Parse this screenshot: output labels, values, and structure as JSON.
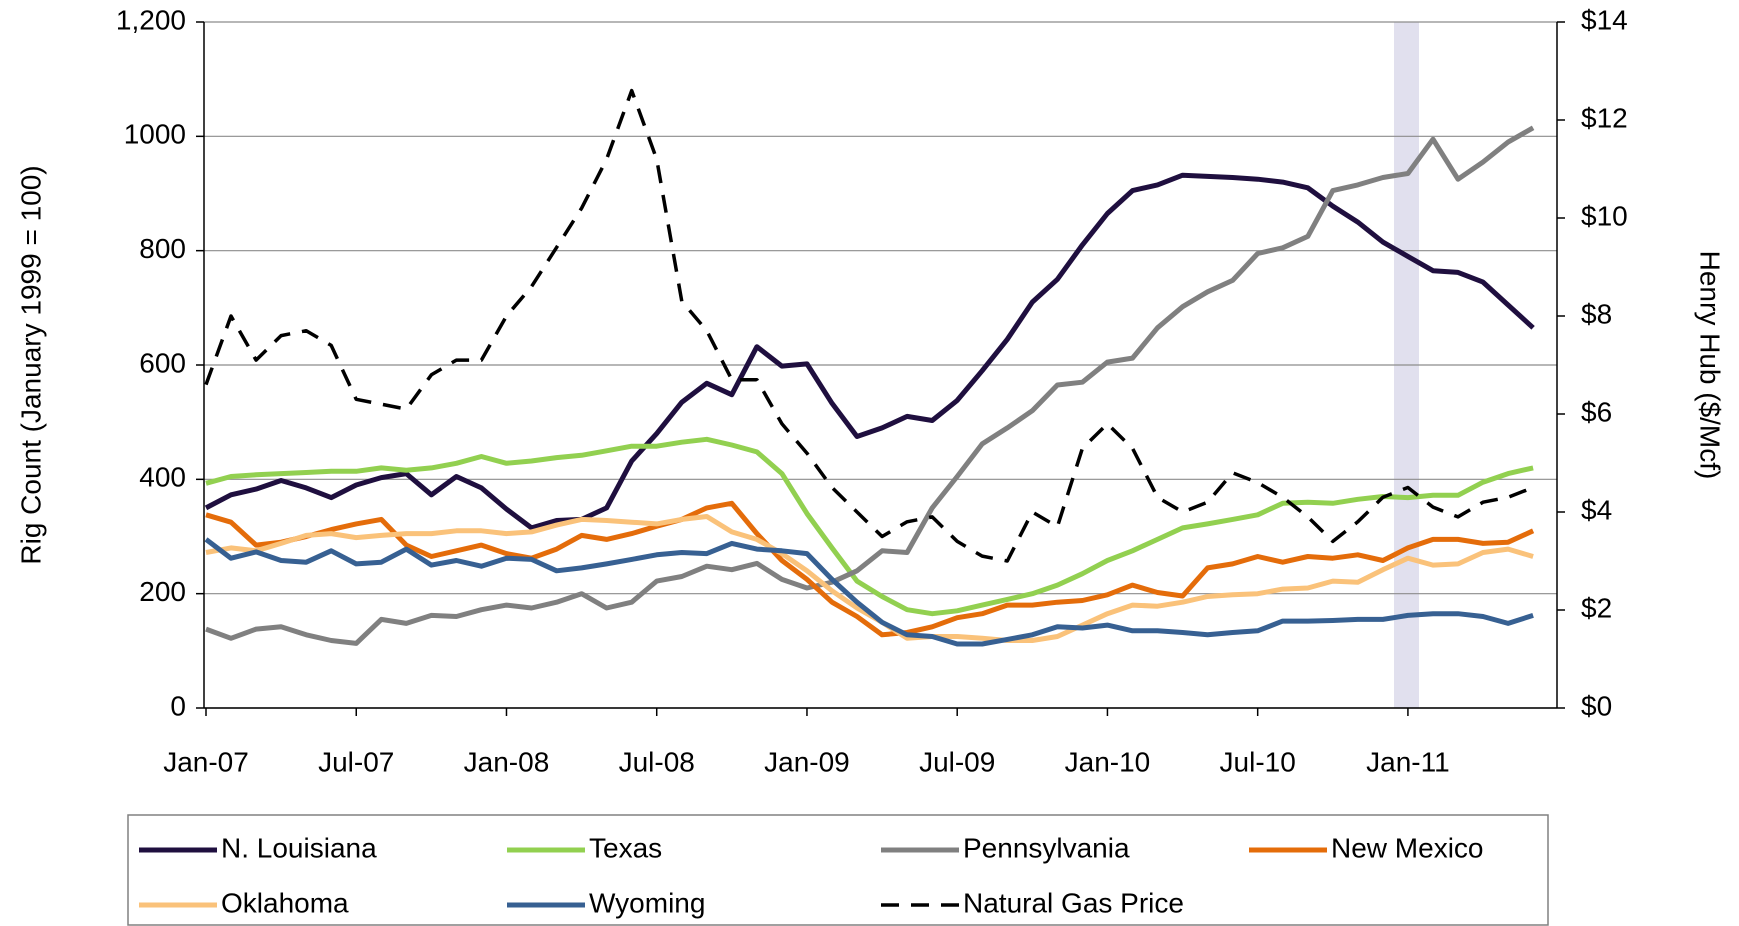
{
  "chart_data": {
    "type": "line",
    "categories": [
      "Jan-07",
      null,
      null,
      null,
      null,
      null,
      "Jul-07",
      null,
      null,
      null,
      null,
      null,
      "Jan-08",
      null,
      null,
      null,
      null,
      null,
      "Jul-08",
      null,
      null,
      null,
      null,
      null,
      "Jan-09",
      null,
      null,
      null,
      null,
      null,
      "Jul-09",
      null,
      null,
      null,
      null,
      null,
      "Jan-10",
      null,
      null,
      null,
      null,
      null,
      "Jul-10",
      null,
      null,
      null,
      null,
      null,
      "Jan-11",
      null,
      null,
      null,
      null,
      null
    ],
    "ylabel": "Rig Count (January 1999 = 100)",
    "y2label": "Henry Hub ($/Mcf)",
    "ylim": [
      0,
      1200
    ],
    "yticks": [
      0,
      200,
      400,
      600,
      800,
      1000,
      {
        "value": 1200,
        "label": "1,200"
      }
    ],
    "y2lim": [
      0,
      14
    ],
    "y2ticks": [
      {
        "value": 0,
        "label": "$0"
      },
      {
        "value": 2,
        "label": "$2"
      },
      {
        "value": 4,
        "label": "$4"
      },
      {
        "value": 6,
        "label": "$6"
      },
      {
        "value": 8,
        "label": "$8"
      },
      {
        "value": 10,
        "label": "$10"
      },
      {
        "value": 12,
        "label": "$12"
      },
      {
        "value": 14,
        "label": "$14"
      }
    ],
    "grid": true,
    "legend": "bottom",
    "series": [
      {
        "name": "N. Louisiana",
        "color": "#1f0f3f",
        "values": [
          350,
          373,
          383,
          398,
          385,
          368,
          390,
          403,
          410,
          373,
          405,
          385,
          348,
          315,
          328,
          330,
          350,
          432,
          480,
          535,
          568,
          548,
          632,
          598,
          602,
          533,
          475,
          490,
          510,
          503,
          538,
          590,
          645,
          710,
          750,
          810,
          865,
          905,
          915,
          932,
          930,
          928,
          925,
          920,
          910,
          878,
          850,
          815,
          790,
          765,
          762,
          745,
          705,
          665
        ]
      },
      {
        "name": "Texas",
        "color": "#92d050",
        "values": [
          393,
          405,
          408,
          410,
          412,
          414,
          414,
          420,
          416,
          420,
          428,
          440,
          428,
          432,
          438,
          442,
          450,
          458,
          458,
          465,
          470,
          460,
          448,
          410,
          340,
          280,
          222,
          195,
          172,
          165,
          170,
          180,
          190,
          200,
          215,
          235,
          258,
          275,
          295,
          315,
          322,
          330,
          338,
          358,
          360,
          358,
          365,
          370,
          368,
          372,
          372,
          395,
          410,
          420
        ]
      },
      {
        "name": "Pennsylvania",
        "color": "#808080",
        "values": [
          138,
          122,
          138,
          142,
          128,
          118,
          113,
          155,
          148,
          162,
          160,
          172,
          180,
          175,
          185,
          200,
          175,
          185,
          222,
          230,
          248,
          242,
          253,
          225,
          210,
          220,
          240,
          275,
          272,
          350,
          405,
          462,
          490,
          520,
          565,
          570,
          605,
          612,
          665,
          702,
          728,
          748,
          795,
          805,
          825,
          905,
          915,
          928,
          935,
          995,
          925,
          955,
          990,
          1015
        ]
      },
      {
        "name": "New Mexico",
        "color": "#e46c0a",
        "values": [
          338,
          325,
          285,
          290,
          300,
          312,
          322,
          330,
          285,
          265,
          275,
          285,
          270,
          262,
          278,
          302,
          295,
          305,
          318,
          330,
          350,
          358,
          305,
          258,
          225,
          185,
          160,
          128,
          132,
          142,
          158,
          165,
          180,
          180,
          185,
          188,
          198,
          215,
          202,
          196,
          245,
          252,
          265,
          255,
          265,
          262,
          268,
          258,
          280,
          295,
          295,
          288,
          290,
          310
        ]
      },
      {
        "name": "Oklahoma",
        "color": "#fac27a",
        "values": [
          272,
          280,
          275,
          288,
          302,
          305,
          298,
          302,
          305,
          305,
          310,
          310,
          305,
          308,
          320,
          330,
          328,
          325,
          322,
          330,
          335,
          308,
          295,
          270,
          240,
          205,
          175,
          150,
          122,
          125,
          125,
          122,
          118,
          118,
          125,
          145,
          165,
          180,
          178,
          185,
          195,
          198,
          200,
          208,
          210,
          222,
          220,
          242,
          262,
          250,
          252,
          272,
          278,
          265
        ]
      },
      {
        "name": "Wyoming",
        "color": "#376092",
        "values": [
          295,
          262,
          273,
          258,
          255,
          275,
          252,
          255,
          278,
          250,
          258,
          248,
          262,
          260,
          240,
          245,
          252,
          260,
          268,
          272,
          270,
          288,
          278,
          275,
          270,
          225,
          185,
          150,
          128,
          125,
          112,
          112,
          120,
          128,
          142,
          140,
          145,
          135,
          135,
          132,
          128,
          132,
          135,
          152,
          152,
          153,
          155,
          155,
          162,
          165,
          165,
          160,
          148,
          162
        ]
      },
      {
        "name": "Natural Gas Price",
        "color": "#000000",
        "style": "dashed",
        "axis": "y2",
        "values": [
          6.6,
          8.0,
          7.1,
          7.6,
          7.7,
          7.4,
          6.3,
          6.2,
          6.1,
          6.8,
          7.1,
          7.1,
          8.0,
          8.6,
          9.4,
          10.2,
          11.2,
          12.6,
          11.2,
          8.3,
          7.7,
          6.7,
          6.7,
          5.8,
          5.2,
          4.5,
          4.0,
          3.5,
          3.8,
          3.9,
          3.4,
          3.1,
          3.0,
          4.0,
          3.7,
          5.3,
          5.8,
          5.3,
          4.3,
          4.0,
          4.2,
          4.8,
          4.6,
          4.3,
          3.9,
          3.4,
          3.8,
          4.3,
          4.5,
          4.1,
          3.9,
          4.2,
          4.3,
          4.5
        ]
      }
    ]
  }
}
